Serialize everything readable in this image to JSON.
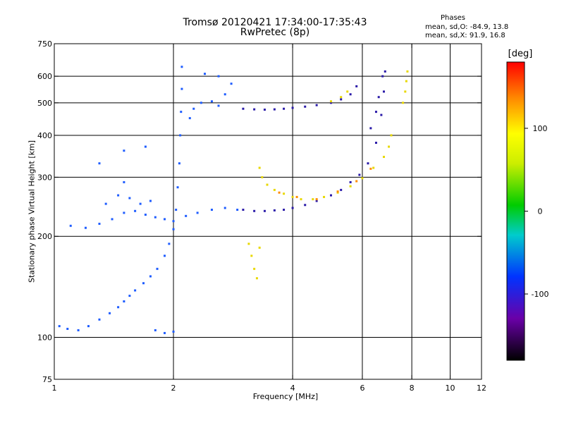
{
  "chart_data": {
    "type": "scatter",
    "title_line1": "Tromsø 20120421 17:34:00-17:35:43",
    "title_line2": "RwPretec (8p)",
    "phases_stats": {
      "title": "Phases",
      "line_o": "mean, sd,O: -84.9, 13.8",
      "line_x": "mean, sd,X:  91.9, 16.8"
    },
    "xlabel": "Frequency [MHz]",
    "ylabel": "Stationary phase Virtual Height [km]",
    "x_scale": "log",
    "y_scale": "log",
    "xlim": [
      1,
      12
    ],
    "ylim": [
      75,
      750
    ],
    "x_ticks": [
      1,
      2,
      4,
      6,
      8,
      10,
      12
    ],
    "x_tick_labels": [
      "1",
      "2",
      "4",
      "6",
      "8",
      "10",
      "12"
    ],
    "x_gridlines": [
      2,
      4,
      6,
      8,
      10
    ],
    "y_ticks": [
      75,
      100,
      200,
      300,
      400,
      500,
      600,
      750
    ],
    "y_tick_labels": [
      "75",
      "100",
      "200",
      "300",
      "400",
      "500",
      "600",
      "750"
    ],
    "y_gridlines": [
      100,
      200,
      300,
      400,
      500,
      600
    ],
    "grid": true,
    "colorbar": {
      "unit": "[deg]",
      "range": [
        -180,
        180
      ],
      "ticks": [
        100,
        0,
        -100
      ],
      "tick_labels": [
        "100",
        "0",
        "-100"
      ]
    },
    "series": [
      {
        "phase_deg": -100,
        "color": "#1e5cff",
        "points": [
          [
            1.03,
            108
          ],
          [
            1.08,
            106
          ],
          [
            1.15,
            105
          ],
          [
            1.22,
            108
          ],
          [
            1.3,
            113
          ],
          [
            1.38,
            118
          ],
          [
            1.45,
            123
          ],
          [
            1.5,
            128
          ],
          [
            1.55,
            133
          ],
          [
            1.6,
            138
          ],
          [
            1.68,
            145
          ],
          [
            1.75,
            152
          ],
          [
            1.82,
            160
          ],
          [
            1.9,
            175
          ],
          [
            1.95,
            190
          ],
          [
            2.0,
            210
          ],
          [
            2.03,
            240
          ],
          [
            2.05,
            280
          ],
          [
            2.07,
            330
          ],
          [
            2.08,
            400
          ],
          [
            2.09,
            470
          ],
          [
            2.1,
            550
          ],
          [
            2.1,
            640
          ],
          [
            1.1,
            215
          ],
          [
            1.2,
            212
          ],
          [
            1.3,
            218
          ],
          [
            1.4,
            225
          ],
          [
            1.5,
            235
          ],
          [
            1.6,
            238
          ],
          [
            1.7,
            232
          ],
          [
            1.8,
            228
          ],
          [
            1.9,
            225
          ],
          [
            2.0,
            222
          ],
          [
            1.35,
            250
          ],
          [
            1.45,
            265
          ],
          [
            1.5,
            290
          ],
          [
            1.55,
            260
          ],
          [
            1.65,
            250
          ],
          [
            1.75,
            255
          ],
          [
            1.3,
            330
          ],
          [
            1.5,
            360
          ],
          [
            1.7,
            370
          ],
          [
            1.8,
            105
          ],
          [
            1.9,
            103
          ],
          [
            2.0,
            104
          ],
          [
            2.15,
            230
          ],
          [
            2.3,
            235
          ],
          [
            2.5,
            240
          ],
          [
            2.7,
            243
          ],
          [
            2.9,
            240
          ],
          [
            2.2,
            450
          ],
          [
            2.25,
            480
          ],
          [
            2.35,
            500
          ],
          [
            2.5,
            505
          ],
          [
            2.6,
            490
          ],
          [
            2.7,
            530
          ],
          [
            2.4,
            610
          ],
          [
            2.6,
            600
          ],
          [
            2.8,
            570
          ]
        ]
      },
      {
        "phase_deg": -130,
        "color": "#2a1aa8",
        "points": [
          [
            3.0,
            480
          ],
          [
            3.2,
            478
          ],
          [
            3.4,
            477
          ],
          [
            3.6,
            478
          ],
          [
            3.8,
            480
          ],
          [
            4.0,
            483
          ],
          [
            4.3,
            487
          ],
          [
            4.6,
            492
          ],
          [
            5.0,
            500
          ],
          [
            5.3,
            512
          ],
          [
            5.6,
            530
          ],
          [
            5.8,
            560
          ],
          [
            3.0,
            240
          ],
          [
            3.2,
            238
          ],
          [
            3.4,
            238
          ],
          [
            3.6,
            239
          ],
          [
            3.8,
            240
          ],
          [
            4.0,
            243
          ],
          [
            4.3,
            248
          ],
          [
            4.6,
            255
          ],
          [
            5.0,
            265
          ],
          [
            5.3,
            275
          ],
          [
            5.6,
            290
          ],
          [
            5.9,
            305
          ],
          [
            6.2,
            330
          ],
          [
            6.5,
            380
          ],
          [
            6.7,
            460
          ],
          [
            6.8,
            540
          ],
          [
            6.85,
            620
          ],
          [
            6.3,
            420
          ],
          [
            6.5,
            470
          ],
          [
            6.6,
            520
          ],
          [
            6.75,
            600
          ]
        ]
      },
      {
        "phase_deg": 90,
        "color": "#e8d800",
        "points": [
          [
            3.3,
            320
          ],
          [
            3.35,
            300
          ],
          [
            3.45,
            285
          ],
          [
            3.6,
            275
          ],
          [
            3.8,
            268
          ],
          [
            4.0,
            262
          ],
          [
            4.2,
            258
          ],
          [
            4.5,
            258
          ],
          [
            4.8,
            262
          ],
          [
            5.2,
            270
          ],
          [
            5.6,
            282
          ],
          [
            6.0,
            298
          ],
          [
            6.4,
            320
          ],
          [
            6.8,
            345
          ],
          [
            7.0,
            370
          ],
          [
            7.1,
            400
          ],
          [
            3.1,
            190
          ],
          [
            3.15,
            175
          ],
          [
            3.2,
            160
          ],
          [
            3.25,
            150
          ],
          [
            3.3,
            185
          ],
          [
            5.0,
            505
          ],
          [
            5.3,
            520
          ],
          [
            5.5,
            540
          ],
          [
            7.6,
            500
          ],
          [
            7.7,
            540
          ],
          [
            7.75,
            580
          ],
          [
            7.8,
            620
          ]
        ]
      },
      {
        "phase_deg": 130,
        "color": "#ff8c00",
        "points": [
          [
            3.7,
            270
          ],
          [
            4.1,
            262
          ],
          [
            4.6,
            258
          ],
          [
            5.2,
            272
          ],
          [
            5.8,
            292
          ],
          [
            6.3,
            318
          ]
        ]
      }
    ]
  }
}
